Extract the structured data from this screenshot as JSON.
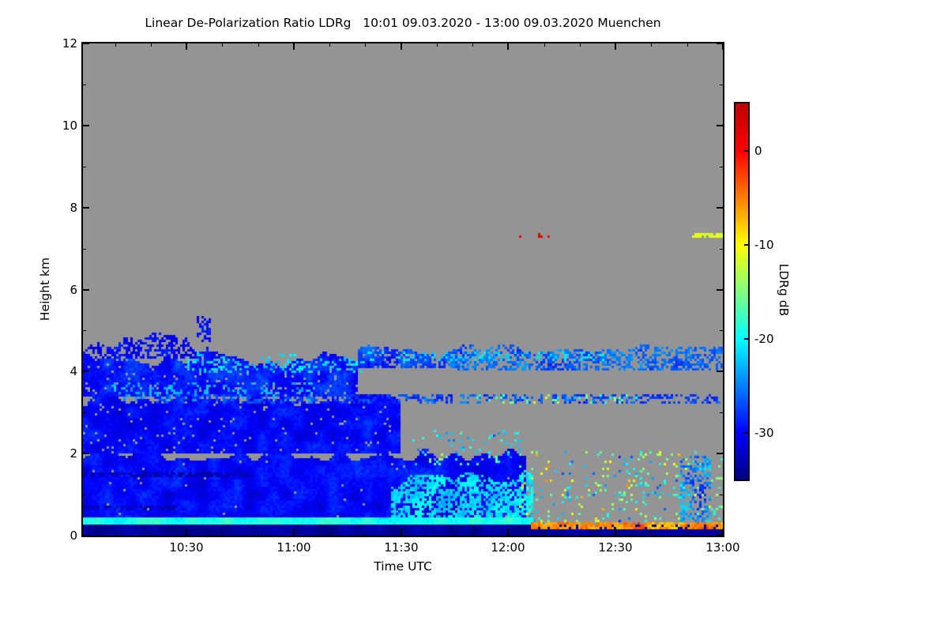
{
  "chart_data": {
    "type": "heatmap",
    "title": "Linear De-Polarization Ratio LDRg   10:01 09.03.2020 - 13:00 09.03.2020 Muenchen",
    "instrument_quantity": "Linear De-Polarization Ratio LDRg",
    "time_start": "10:01 09.03.2020",
    "time_end": "13:00 09.03.2020",
    "station": "Muenchen",
    "xlabel": "Time UTC",
    "ylabel": "Height km",
    "colorbar_label": "LDRg dB",
    "colormap": "jet",
    "background_color": "#949494",
    "x_range_hours": [
      10.0167,
      13.0
    ],
    "y_range_km": [
      0,
      12
    ],
    "x_ticks": [
      {
        "hour": 10.5,
        "label": "10:30"
      },
      {
        "hour": 11.0,
        "label": "11:00"
      },
      {
        "hour": 11.5,
        "label": "11:30"
      },
      {
        "hour": 12.0,
        "label": "12:00"
      },
      {
        "hour": 12.5,
        "label": "12:30"
      },
      {
        "hour": 13.0,
        "label": "13:00"
      }
    ],
    "y_ticks": [
      {
        "km": 0,
        "label": "0"
      },
      {
        "km": 2,
        "label": "2"
      },
      {
        "km": 4,
        "label": "4"
      },
      {
        "km": 6,
        "label": "6"
      },
      {
        "km": 8,
        "label": "8"
      },
      {
        "km": 10,
        "label": "10"
      },
      {
        "km": 12,
        "label": "12"
      }
    ],
    "x_minor_step_minutes": 10,
    "y_minor_step_km": 1,
    "colorbar": {
      "min": -35,
      "max": 5,
      "ticks": [
        {
          "value": 0,
          "label": "0"
        },
        {
          "value": -10,
          "label": "-10"
        },
        {
          "value": -20,
          "label": "-20"
        },
        {
          "value": -30,
          "label": "-30"
        }
      ]
    },
    "features": [
      {
        "name": "main-cloud-low",
        "t0": 10.017,
        "t1": 12.08,
        "h0": 0.25,
        "h1": 2.15,
        "v": -30,
        "spread": 2.2,
        "coverage": 0.99,
        "jag": 0.35
      },
      {
        "name": "main-cloud-mid",
        "t0": 10.017,
        "t1": 11.5,
        "h0": 2.0,
        "h1": 3.5,
        "v": -30,
        "spread": 2.2,
        "coverage": 0.97,
        "jag": 0.35
      },
      {
        "name": "left-cloud-high",
        "t0": 10.017,
        "t1": 11.3,
        "h0": 3.4,
        "h1": 4.6,
        "v": -29,
        "spread": 2.5,
        "coverage": 0.93,
        "jag": 0.55
      },
      {
        "name": "left-top-spikes",
        "t0": 10.03,
        "t1": 10.6,
        "h0": 4.3,
        "h1": 4.95,
        "v": -30,
        "spread": 2.0,
        "coverage": 0.55,
        "jag": 0.5
      },
      {
        "name": "spike-1035",
        "t0": 10.55,
        "t1": 10.61,
        "h0": 4.7,
        "h1": 5.35,
        "v": -30,
        "spread": 1.5,
        "coverage": 0.5
      },
      {
        "name": "cyan-fringe",
        "t0": 10.5,
        "t1": 11.35,
        "h0": 3.95,
        "h1": 4.5,
        "v": -22,
        "spread": 2.5,
        "coverage": 0.25,
        "jag": 0.3
      },
      {
        "name": "wisps-left",
        "t0": 10.15,
        "t1": 11.1,
        "h0": 3.3,
        "h1": 3.75,
        "v": -23,
        "spread": 2.0,
        "coverage": 0.2
      },
      {
        "name": "dark-line-1",
        "t0": 10.017,
        "t1": 10.8,
        "h0": 1.42,
        "h1": 1.52,
        "v": -33,
        "spread": 1.0,
        "coverage": 0.6
      },
      {
        "name": "dark-line-2",
        "t0": 10.017,
        "t1": 10.5,
        "h0": 0.62,
        "h1": 0.72,
        "v": -33,
        "spread": 1.0,
        "coverage": 0.5
      },
      {
        "name": "mid-upper-patch",
        "t0": 11.3,
        "t1": 11.8,
        "h0": 4.1,
        "h1": 4.65,
        "v": -27,
        "spread": 3.0,
        "coverage": 0.8,
        "jag": 0.3
      },
      {
        "name": "upper-band-right",
        "t0": 11.75,
        "t1": 13.0,
        "h0": 4.0,
        "h1": 4.68,
        "v": -26,
        "spread": 3.0,
        "coverage": 0.55,
        "jag": 0.25
      },
      {
        "name": "band-cyan-cores",
        "t0": 11.35,
        "t1": 12.45,
        "h0": 4.25,
        "h1": 4.5,
        "v": -21,
        "spread": 2.0,
        "coverage": 0.2
      },
      {
        "name": "thin-band-33",
        "t0": 10.35,
        "t1": 13.0,
        "h0": 3.2,
        "h1": 3.45,
        "v": -27,
        "spread": 3.0,
        "coverage": 0.4
      },
      {
        "name": "band-specks",
        "t0": 11.85,
        "t1": 12.6,
        "h0": 3.22,
        "h1": 3.45,
        "v": -18,
        "spread": 8.0,
        "coverage": 0.12
      },
      {
        "name": "fall-streaks",
        "t0": 11.45,
        "t1": 12.12,
        "h0": 0.45,
        "h1": 1.6,
        "v": -21,
        "spread": 3.0,
        "coverage": 0.7,
        "jag": 0.45
      },
      {
        "name": "speckles-mid",
        "t0": 11.55,
        "t1": 12.1,
        "h0": 1.7,
        "h1": 2.6,
        "v": -20,
        "spread": 8.0,
        "coverage": 0.07
      },
      {
        "name": "bright-surface-line",
        "t0": 10.017,
        "t1": 12.12,
        "h0": 0.27,
        "h1": 0.43,
        "v": -19,
        "spread": 2.5,
        "coverage": 1.0
      },
      {
        "name": "dark-ground-layer",
        "t0": 10.017,
        "t1": 13.0,
        "h0": 0.0,
        "h1": 0.25,
        "v": -34,
        "spread": 1.5,
        "coverage": 1.0
      },
      {
        "name": "orange-ground-right",
        "t0": 12.1,
        "t1": 13.0,
        "h0": 0.13,
        "h1": 0.3,
        "v": -5,
        "spread": 4.0,
        "coverage": 0.85
      },
      {
        "name": "speckles-right",
        "t0": 12.05,
        "t1": 13.0,
        "h0": 0.3,
        "h1": 2.05,
        "v": -17,
        "spread": 12.0,
        "coverage": 0.09
      },
      {
        "name": "vertical-plume",
        "t0": 12.8,
        "t1": 12.94,
        "h0": 0.3,
        "h1": 1.95,
        "v": -25,
        "spread": 5.0,
        "coverage": 0.5
      },
      {
        "name": "high-red-dots",
        "t0": 12.02,
        "t1": 12.22,
        "h0": 7.28,
        "h1": 7.38,
        "v": 1,
        "spread": 3.0,
        "coverage": 0.2
      },
      {
        "name": "high-yellow-dash",
        "t0": 12.86,
        "t1": 13.0,
        "h0": 7.28,
        "h1": 7.38,
        "v": -11,
        "spread": 2.0,
        "coverage": 0.7
      }
    ]
  }
}
